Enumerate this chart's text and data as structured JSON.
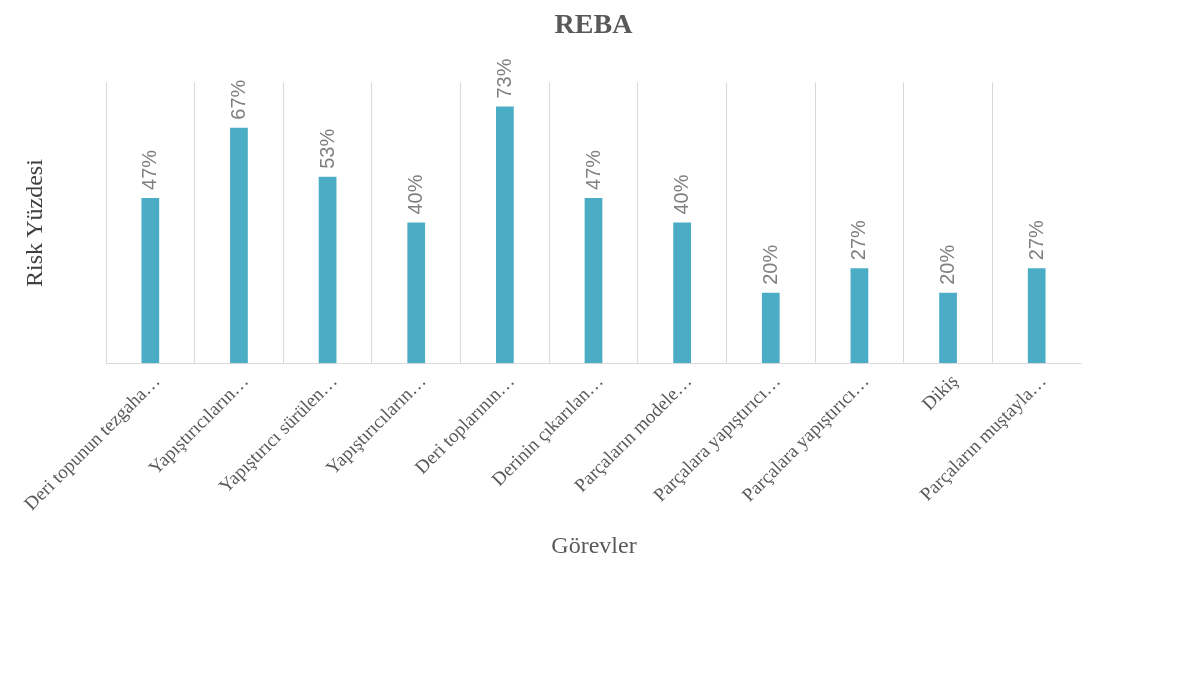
{
  "chart_data": {
    "type": "bar",
    "title": "REBA",
    "xlabel": "Görevler",
    "ylabel": "Risk Yüzdesi",
    "categories": [
      "Deri topunun tezgaha…",
      "Yapıştırıcıların…",
      "Yapıştırıcı sürülen…",
      "Yapıştırıcıların…",
      "Deri toplarının…",
      "Derinin çıkarılan…",
      "Parçaların modele…",
      "Parçalara yapıştırıcı…",
      "Parçalara yapıştırıcı…",
      "Dikiş",
      "Parçaların muştayla…"
    ],
    "values": [
      47,
      67,
      53,
      40,
      73,
      47,
      40,
      20,
      27,
      20,
      27
    ],
    "value_labels": [
      "47%",
      "67%",
      "53%",
      "40%",
      "73%",
      "47%",
      "40%",
      "20%",
      "27%",
      "20%",
      "27%"
    ],
    "color": "#4bacc6",
    "ylim": [
      0,
      80
    ],
    "grid": "x"
  }
}
